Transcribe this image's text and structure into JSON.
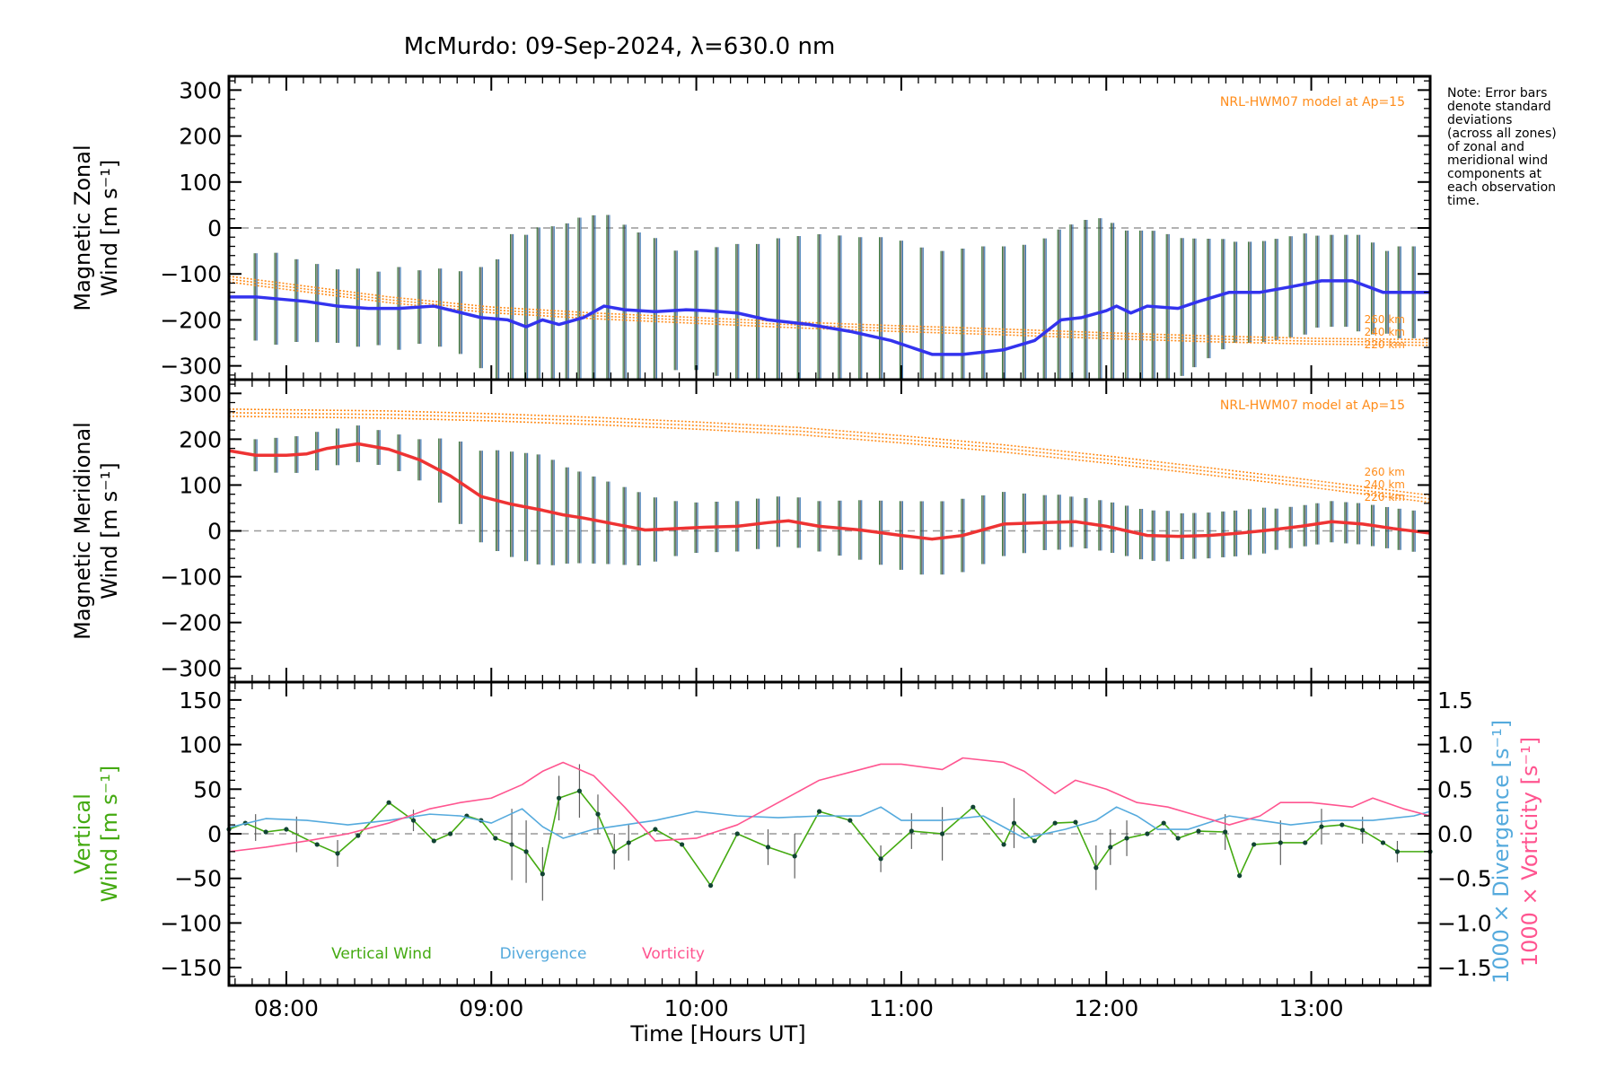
{
  "title": "McMurdo: 09-Sep-2024, λ=630.0 nm",
  "note_lines": [
    "Note: Error bars",
    "denote standard",
    "deviations",
    "(across all zones)",
    "of zonal and",
    "meridional wind",
    "components at",
    "each observation",
    "time."
  ],
  "colors": {
    "zonal": "#3333ee",
    "meridional": "#ee3333",
    "model": "#ff8c1a",
    "vertical": "#44aa11",
    "divergence": "#55aadd",
    "vorticity": "#ff5590",
    "errbar": "#444444",
    "zero_line": "#999999"
  },
  "chart_data": [
    {
      "type": "line",
      "ylabel_lines": [
        "Magnetic Zonal",
        "Wind [m s⁻¹]"
      ],
      "ylim": [
        -330,
        330
      ],
      "yticks": [
        300,
        200,
        100,
        0,
        -100,
        -200,
        -300
      ],
      "xlim": [
        7.72,
        13.58
      ],
      "zero_line": true,
      "model_label": "NRL-HWM07 model at Ap=15",
      "model_alt_labels": [
        "260 km",
        "240 km",
        "220 km"
      ],
      "model": {
        "x": [
          7.72,
          8.5,
          9.0,
          9.5,
          10.0,
          10.5,
          11.0,
          11.5,
          12.0,
          12.5,
          13.0,
          13.58
        ],
        "y": [
          -105,
          -150,
          -172,
          -185,
          -195,
          -205,
          -213,
          -220,
          -228,
          -235,
          -240,
          -243
        ]
      },
      "series": [
        {
          "name": "Magnetic Zonal Wind",
          "x": [
            7.72,
            7.85,
            8.1,
            8.25,
            8.4,
            8.55,
            8.72,
            8.95,
            9.08,
            9.17,
            9.25,
            9.33,
            9.45,
            9.55,
            9.65,
            9.8,
            9.95,
            10.05,
            10.2,
            10.35,
            10.55,
            10.75,
            10.95,
            11.15,
            11.3,
            11.5,
            11.65,
            11.78,
            11.88,
            12.0,
            12.05,
            12.12,
            12.2,
            12.35,
            12.45,
            12.6,
            12.75,
            12.9,
            13.05,
            13.2,
            13.35,
            13.58
          ],
          "y": [
            -150,
            -150,
            -160,
            -170,
            -175,
            -175,
            -170,
            -195,
            -200,
            -215,
            -200,
            -210,
            -195,
            -170,
            -178,
            -182,
            -178,
            -180,
            -185,
            -200,
            -210,
            -225,
            -245,
            -275,
            -275,
            -265,
            -245,
            -200,
            -195,
            -180,
            -170,
            -185,
            -170,
            -175,
            -160,
            -140,
            -140,
            -128,
            -115,
            -115,
            -140,
            -140
          ]
        }
      ],
      "errbars": {
        "x": [
          7.85,
          7.95,
          8.05,
          8.15,
          8.25,
          8.35,
          8.45,
          8.55,
          8.65,
          8.75,
          8.85,
          8.95,
          9.03,
          9.1,
          9.17,
          9.23,
          9.3,
          9.37,
          9.43,
          9.5,
          9.57,
          9.65,
          9.72,
          9.8,
          9.9,
          10.0,
          10.1,
          10.2,
          10.3,
          10.4,
          10.5,
          10.6,
          10.7,
          10.8,
          10.9,
          11.0,
          11.1,
          11.2,
          11.3,
          11.4,
          11.5,
          11.6,
          11.7,
          11.77,
          11.83,
          11.9,
          11.97,
          12.03,
          12.1,
          12.17,
          12.23,
          12.3,
          12.37,
          12.43,
          12.5,
          12.57,
          12.63,
          12.7,
          12.77,
          12.83,
          12.9,
          12.97,
          13.03,
          13.1,
          13.17,
          13.23,
          13.3,
          13.37,
          13.43,
          13.5
        ],
        "err": [
          95,
          100,
          90,
          85,
          80,
          85,
          80,
          90,
          80,
          85,
          90,
          110,
          130,
          190,
          200,
          205,
          210,
          215,
          220,
          210,
          200,
          185,
          170,
          160,
          130,
          130,
          140,
          150,
          160,
          180,
          190,
          200,
          205,
          210,
          220,
          225,
          225,
          225,
          230,
          230,
          225,
          215,
          205,
          200,
          205,
          210,
          205,
          185,
          175,
          170,
          165,
          160,
          150,
          140,
          130,
          120,
          110,
          110,
          110,
          110,
          110,
          110,
          100,
          100,
          100,
          105,
          100,
          90,
          100,
          100
        ]
      }
    },
    {
      "type": "line",
      "ylabel_lines": [
        "Magnetic Meridional",
        "Wind [m s⁻¹]"
      ],
      "ylim": [
        -330,
        330
      ],
      "yticks": [
        300,
        200,
        100,
        0,
        -100,
        -200,
        -300
      ],
      "xlim": [
        7.72,
        13.58
      ],
      "zero_line": true,
      "model_label": "NRL-HWM07 model at Ap=15",
      "model_alt_labels": [
        "260 km",
        "240 km",
        "220 km"
      ],
      "model": {
        "x": [
          7.72,
          8.5,
          9.0,
          9.5,
          10.0,
          10.5,
          11.0,
          11.5,
          12.0,
          12.5,
          13.0,
          13.58
        ],
        "y": [
          250,
          246,
          240,
          232,
          222,
          210,
          192,
          172,
          148,
          122,
          95,
          62
        ]
      },
      "series": [
        {
          "name": "Magnetic Meridional Wind",
          "x": [
            7.72,
            7.85,
            8.0,
            8.1,
            8.2,
            8.35,
            8.5,
            8.65,
            8.8,
            8.95,
            9.1,
            9.25,
            9.35,
            9.45,
            9.6,
            9.75,
            9.9,
            10.05,
            10.2,
            10.35,
            10.45,
            10.6,
            10.8,
            11.0,
            11.15,
            11.3,
            11.5,
            11.7,
            11.85,
            12.0,
            12.2,
            12.35,
            12.5,
            12.65,
            12.8,
            12.95,
            13.1,
            13.25,
            13.4,
            13.58
          ],
          "y": [
            175,
            165,
            165,
            168,
            180,
            190,
            178,
            155,
            120,
            75,
            58,
            45,
            35,
            28,
            15,
            2,
            5,
            8,
            10,
            18,
            22,
            10,
            2,
            -10,
            -18,
            -10,
            15,
            18,
            20,
            10,
            -10,
            -12,
            -10,
            -5,
            2,
            10,
            20,
            15,
            5,
            -5
          ]
        }
      ],
      "errbars": {
        "x": [
          7.85,
          7.95,
          8.05,
          8.15,
          8.25,
          8.35,
          8.45,
          8.55,
          8.65,
          8.75,
          8.85,
          8.95,
          9.03,
          9.1,
          9.17,
          9.23,
          9.3,
          9.37,
          9.43,
          9.5,
          9.57,
          9.65,
          9.72,
          9.8,
          9.9,
          10.0,
          10.1,
          10.2,
          10.3,
          10.4,
          10.5,
          10.6,
          10.7,
          10.8,
          10.9,
          11.0,
          11.1,
          11.2,
          11.3,
          11.4,
          11.5,
          11.6,
          11.7,
          11.77,
          11.83,
          11.9,
          11.97,
          12.03,
          12.1,
          12.17,
          12.23,
          12.3,
          12.37,
          12.43,
          12.5,
          12.57,
          12.63,
          12.7,
          12.77,
          12.83,
          12.9,
          12.97,
          13.03,
          13.1,
          13.17,
          13.23,
          13.3,
          13.37,
          13.43,
          13.5
        ],
        "err": [
          35,
          38,
          40,
          42,
          40,
          40,
          38,
          40,
          45,
          70,
          90,
          100,
          110,
          115,
          118,
          120,
          115,
          105,
          100,
          95,
          90,
          85,
          80,
          70,
          60,
          55,
          55,
          55,
          55,
          55,
          55,
          55,
          60,
          65,
          70,
          75,
          80,
          80,
          80,
          75,
          70,
          65,
          60,
          60,
          55,
          55,
          55,
          55,
          55,
          55,
          55,
          55,
          50,
          50,
          50,
          50,
          50,
          50,
          50,
          45,
          45,
          45,
          45,
          45,
          45,
          45,
          45,
          45,
          45,
          45
        ]
      }
    },
    {
      "type": "line",
      "ylabel_left": [
        "Vertical",
        "Wind [m s⁻¹]"
      ],
      "ylabel_right1": "1000 × Divergence [s⁻¹]",
      "ylabel_right2": "1000 × Vorticity [s⁻¹]",
      "ylim": [
        -170,
        170
      ],
      "yticks": [
        150,
        100,
        50,
        0,
        -50,
        -100,
        -150
      ],
      "ylim_right": [
        -1.7,
        1.7
      ],
      "yticks_right": [
        1.5,
        1.0,
        0.5,
        0.0,
        -0.5,
        -1.0,
        -1.5
      ],
      "xlim": [
        7.72,
        13.58
      ],
      "zero_line": true,
      "xticks": [
        8,
        9,
        10,
        11,
        12,
        13
      ],
      "xtick_labels": [
        "08:00",
        "09:00",
        "10:00",
        "11:00",
        "12:00",
        "13:00"
      ],
      "xlabel": "Time [Hours UT]",
      "legend": [
        "Vertical Wind",
        "Divergence",
        "Vorticity"
      ],
      "series": [
        {
          "name": "Vertical Wind",
          "x": [
            7.72,
            7.8,
            7.9,
            8.0,
            8.15,
            8.25,
            8.35,
            8.5,
            8.62,
            8.72,
            8.8,
            8.88,
            8.95,
            9.02,
            9.1,
            9.17,
            9.25,
            9.33,
            9.43,
            9.52,
            9.6,
            9.67,
            9.8,
            9.93,
            10.07,
            10.2,
            10.35,
            10.48,
            10.6,
            10.75,
            10.9,
            11.05,
            11.2,
            11.35,
            11.5,
            11.55,
            11.65,
            11.75,
            11.85,
            11.95,
            12.02,
            12.1,
            12.2,
            12.28,
            12.35,
            12.45,
            12.58,
            12.65,
            12.72,
            12.85,
            12.97,
            13.05,
            13.15,
            13.25,
            13.35,
            13.42,
            13.58
          ],
          "y": [
            5,
            12,
            2,
            5,
            -12,
            -22,
            -2,
            35,
            15,
            -8,
            0,
            20,
            15,
            -5,
            -12,
            -20,
            -45,
            40,
            48,
            22,
            -20,
            -10,
            5,
            -12,
            -58,
            0,
            -15,
            -25,
            25,
            15,
            -28,
            3,
            0,
            30,
            -12,
            12,
            -8,
            12,
            13,
            -38,
            -15,
            -5,
            0,
            12,
            -5,
            3,
            2,
            -47,
            -12,
            -10,
            -10,
            8,
            10,
            4,
            -10,
            -20,
            -20
          ]
        },
        {
          "name": "Divergence",
          "axis": "right",
          "x": [
            7.72,
            7.9,
            8.1,
            8.3,
            8.5,
            8.7,
            8.85,
            9.0,
            9.15,
            9.25,
            9.35,
            9.5,
            9.65,
            9.8,
            10.0,
            10.2,
            10.4,
            10.6,
            10.8,
            10.9,
            11.0,
            11.2,
            11.4,
            11.6,
            11.8,
            11.95,
            12.05,
            12.15,
            12.25,
            12.4,
            12.6,
            12.75,
            12.9,
            13.1,
            13.3,
            13.5,
            13.58
          ],
          "y": [
            0.07,
            0.17,
            0.15,
            0.1,
            0.15,
            0.22,
            0.2,
            0.12,
            0.28,
            0.08,
            -0.05,
            0.05,
            0.1,
            0.15,
            0.25,
            0.2,
            0.18,
            0.2,
            0.2,
            0.3,
            0.15,
            0.15,
            0.2,
            -0.05,
            0.05,
            0.15,
            0.3,
            0.2,
            0.05,
            0.05,
            0.2,
            0.15,
            0.1,
            0.15,
            0.15,
            0.2,
            0.25
          ]
        },
        {
          "name": "Vorticity",
          "axis": "right",
          "x": [
            7.72,
            7.9,
            8.1,
            8.3,
            8.5,
            8.7,
            8.85,
            9.0,
            9.15,
            9.25,
            9.35,
            9.5,
            9.65,
            9.8,
            10.0,
            10.2,
            10.4,
            10.6,
            10.8,
            10.9,
            11.0,
            11.2,
            11.3,
            11.5,
            11.6,
            11.75,
            11.85,
            12.0,
            12.15,
            12.3,
            12.45,
            12.6,
            12.75,
            12.85,
            13.0,
            13.2,
            13.3,
            13.45,
            13.58
          ],
          "y": [
            -0.2,
            -0.15,
            -0.08,
            0.0,
            0.12,
            0.28,
            0.35,
            0.4,
            0.55,
            0.7,
            0.8,
            0.65,
            0.3,
            -0.08,
            -0.05,
            0.1,
            0.35,
            0.6,
            0.72,
            0.78,
            0.78,
            0.72,
            0.85,
            0.8,
            0.7,
            0.45,
            0.6,
            0.5,
            0.35,
            0.3,
            0.2,
            0.1,
            0.2,
            0.35,
            0.35,
            0.3,
            0.4,
            0.28,
            0.2
          ]
        }
      ],
      "errbars": {
        "x": [
          7.85,
          8.05,
          8.25,
          8.62,
          9.1,
          9.17,
          9.25,
          9.33,
          9.43,
          9.52,
          9.6,
          9.67,
          10.35,
          10.48,
          10.9,
          11.05,
          11.2,
          11.55,
          11.95,
          12.02,
          12.1,
          12.58,
          12.85,
          13.05,
          13.25,
          13.42
        ],
        "err": [
          15,
          20,
          15,
          12,
          40,
          35,
          30,
          25,
          30,
          22,
          20,
          20,
          20,
          25,
          15,
          20,
          30,
          28,
          25,
          20,
          20,
          20,
          25,
          20,
          15,
          12
        ]
      }
    }
  ]
}
